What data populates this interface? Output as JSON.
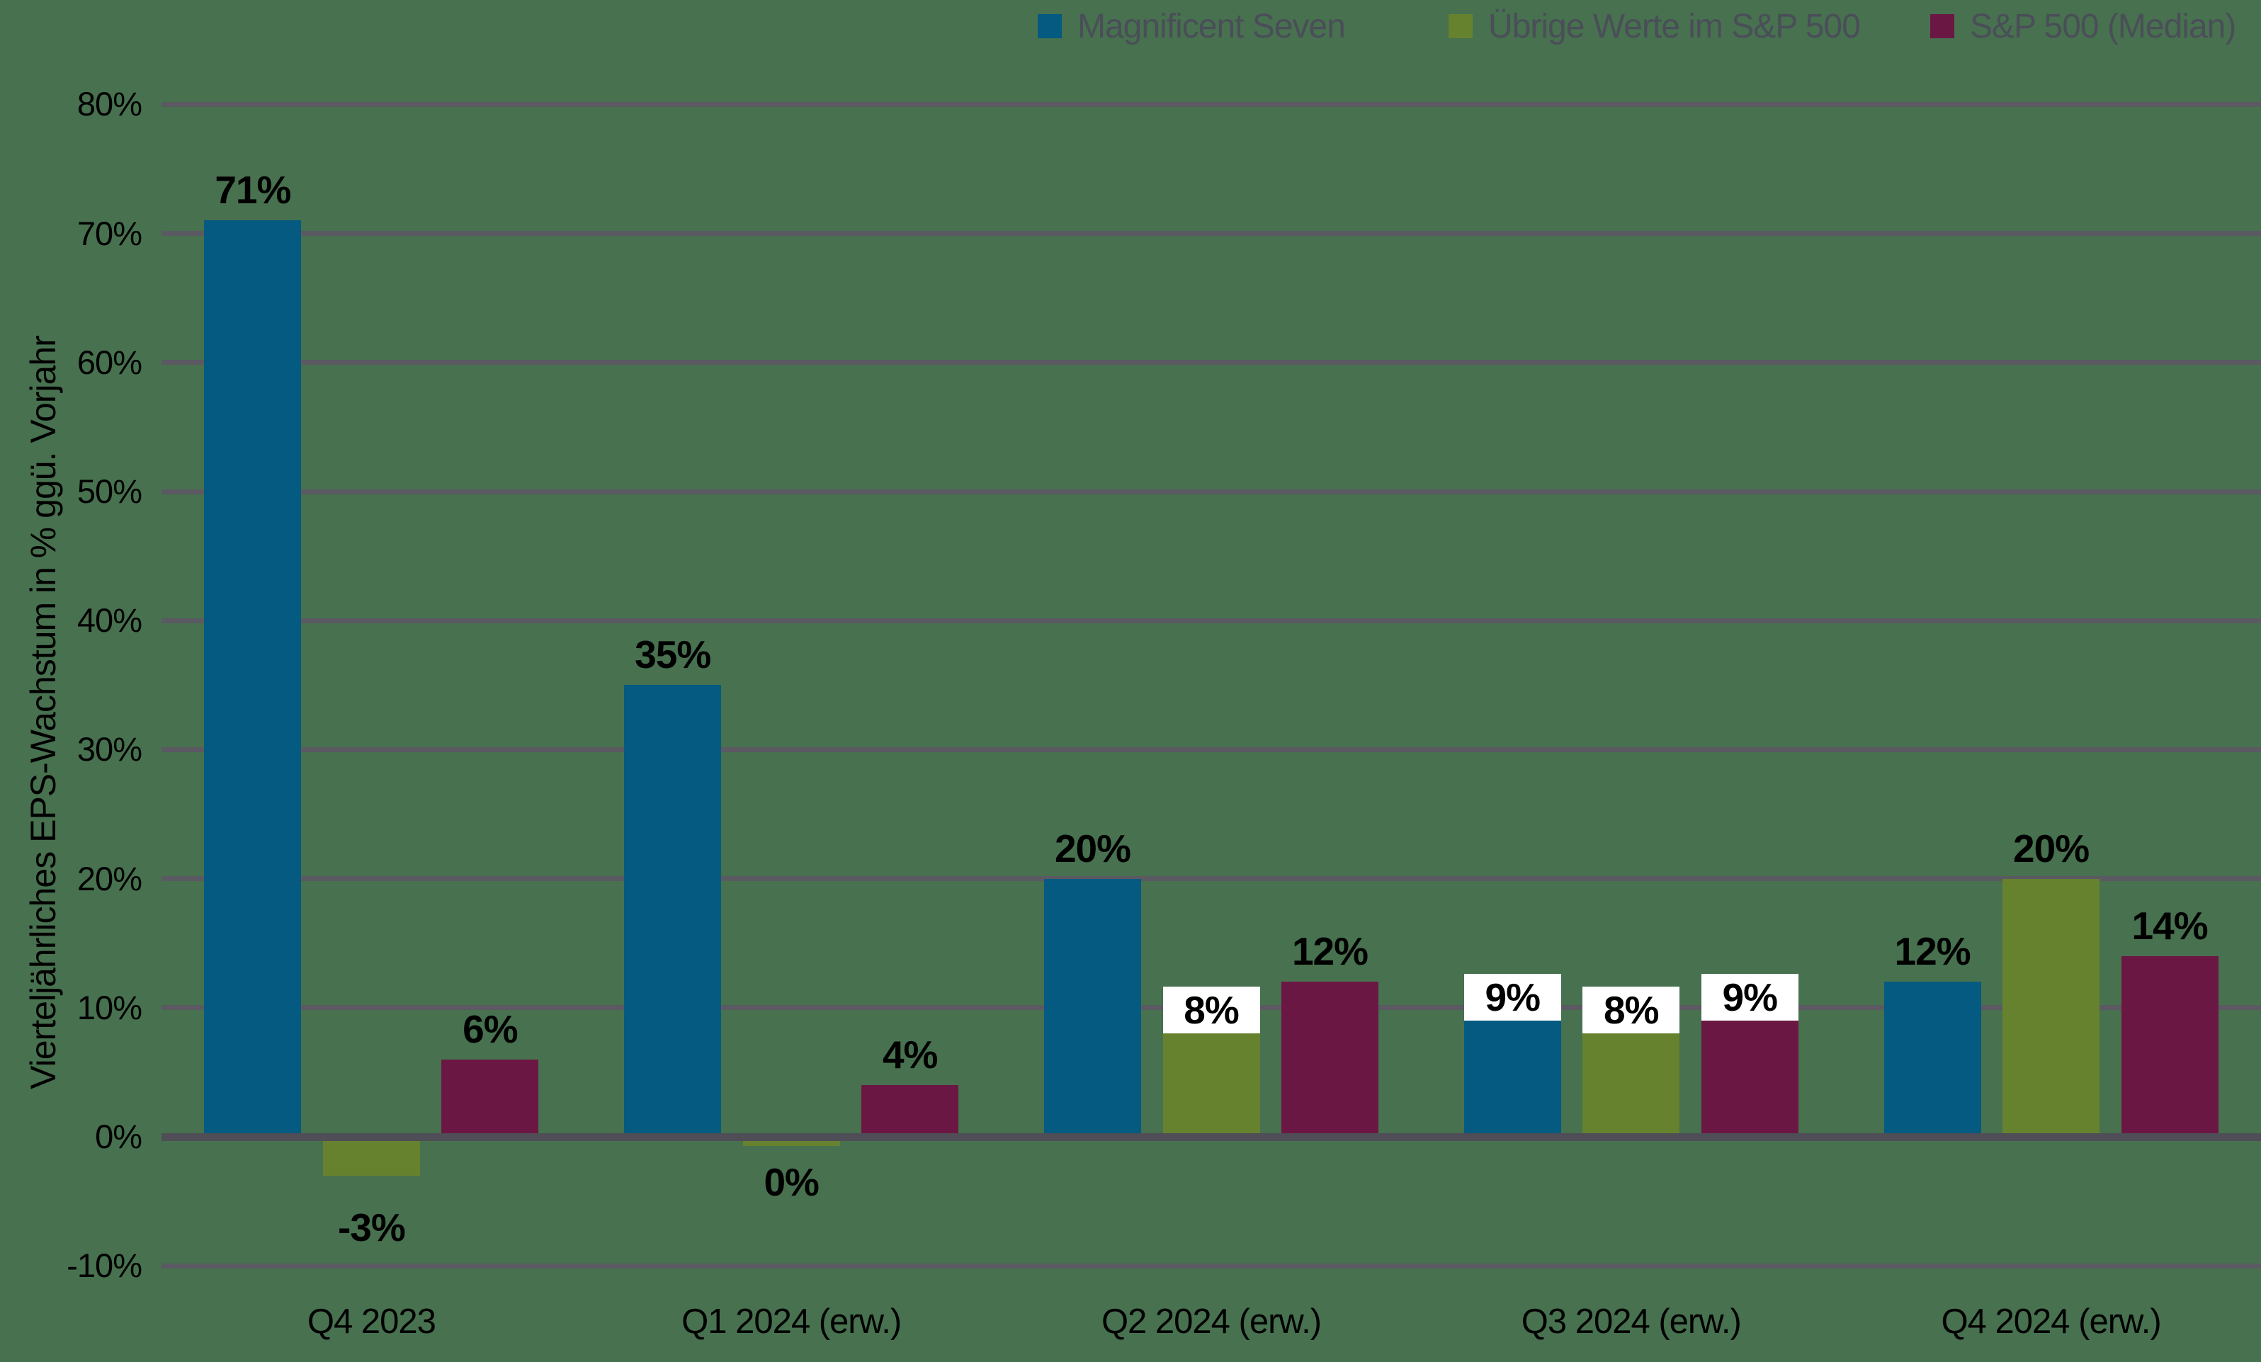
{
  "chart": {
    "background": "#47714F",
    "grid_color": "#5B5962",
    "zero_line_color": "#4F4D55",
    "label_text_color": "#000000",
    "legend_text_color": "#4A4E58",
    "label_box_color": "#FFFFFF",
    "y_axis_title": "Vierteljährliches EPS-Wachstum in % ggü. Vorjahr"
  },
  "chart_data": {
    "type": "bar",
    "title": "",
    "categories": [
      "Q4 2023",
      "Q1 2024 (erw.)",
      "Q2 2024 (erw.)",
      "Q3 2024 (erw.)",
      "Q4 2024 (erw.)"
    ],
    "series": [
      {
        "name": "Magnificent Seven",
        "color": "#045A80",
        "values": [
          71,
          35,
          20,
          9,
          12
        ],
        "labels": [
          "71%",
          "35%",
          "20%",
          "9%",
          "12%"
        ],
        "boxed_labels": [
          false,
          false,
          false,
          true,
          false
        ]
      },
      {
        "name": "Übrige Werte im S&P 500",
        "color": "#66822E",
        "values": [
          -3,
          0,
          8,
          8,
          20
        ],
        "labels": [
          "-3%",
          "0%",
          "8%",
          "8%",
          "20%"
        ],
        "boxed_labels": [
          false,
          false,
          true,
          true,
          false
        ]
      },
      {
        "name": "S&P 500 (Median)",
        "color": "#6B1743",
        "values": [
          6,
          4,
          12,
          9,
          14
        ],
        "labels": [
          "6%",
          "4%",
          "12%",
          "9%",
          "14%"
        ],
        "boxed_labels": [
          false,
          false,
          false,
          true,
          false
        ]
      }
    ],
    "xlabel": "",
    "ylabel": "Vierteljährliches EPS-Wachstum in % ggü. Vorjahr",
    "ylim": [
      -10,
      80
    ],
    "ytick_step": 10,
    "ytick_labels": [
      "80%",
      "70%",
      "60%",
      "50%",
      "40%",
      "30%",
      "20%",
      "10%",
      "0%",
      "-10%"
    ],
    "grid": true,
    "legend_position": "top-right"
  }
}
